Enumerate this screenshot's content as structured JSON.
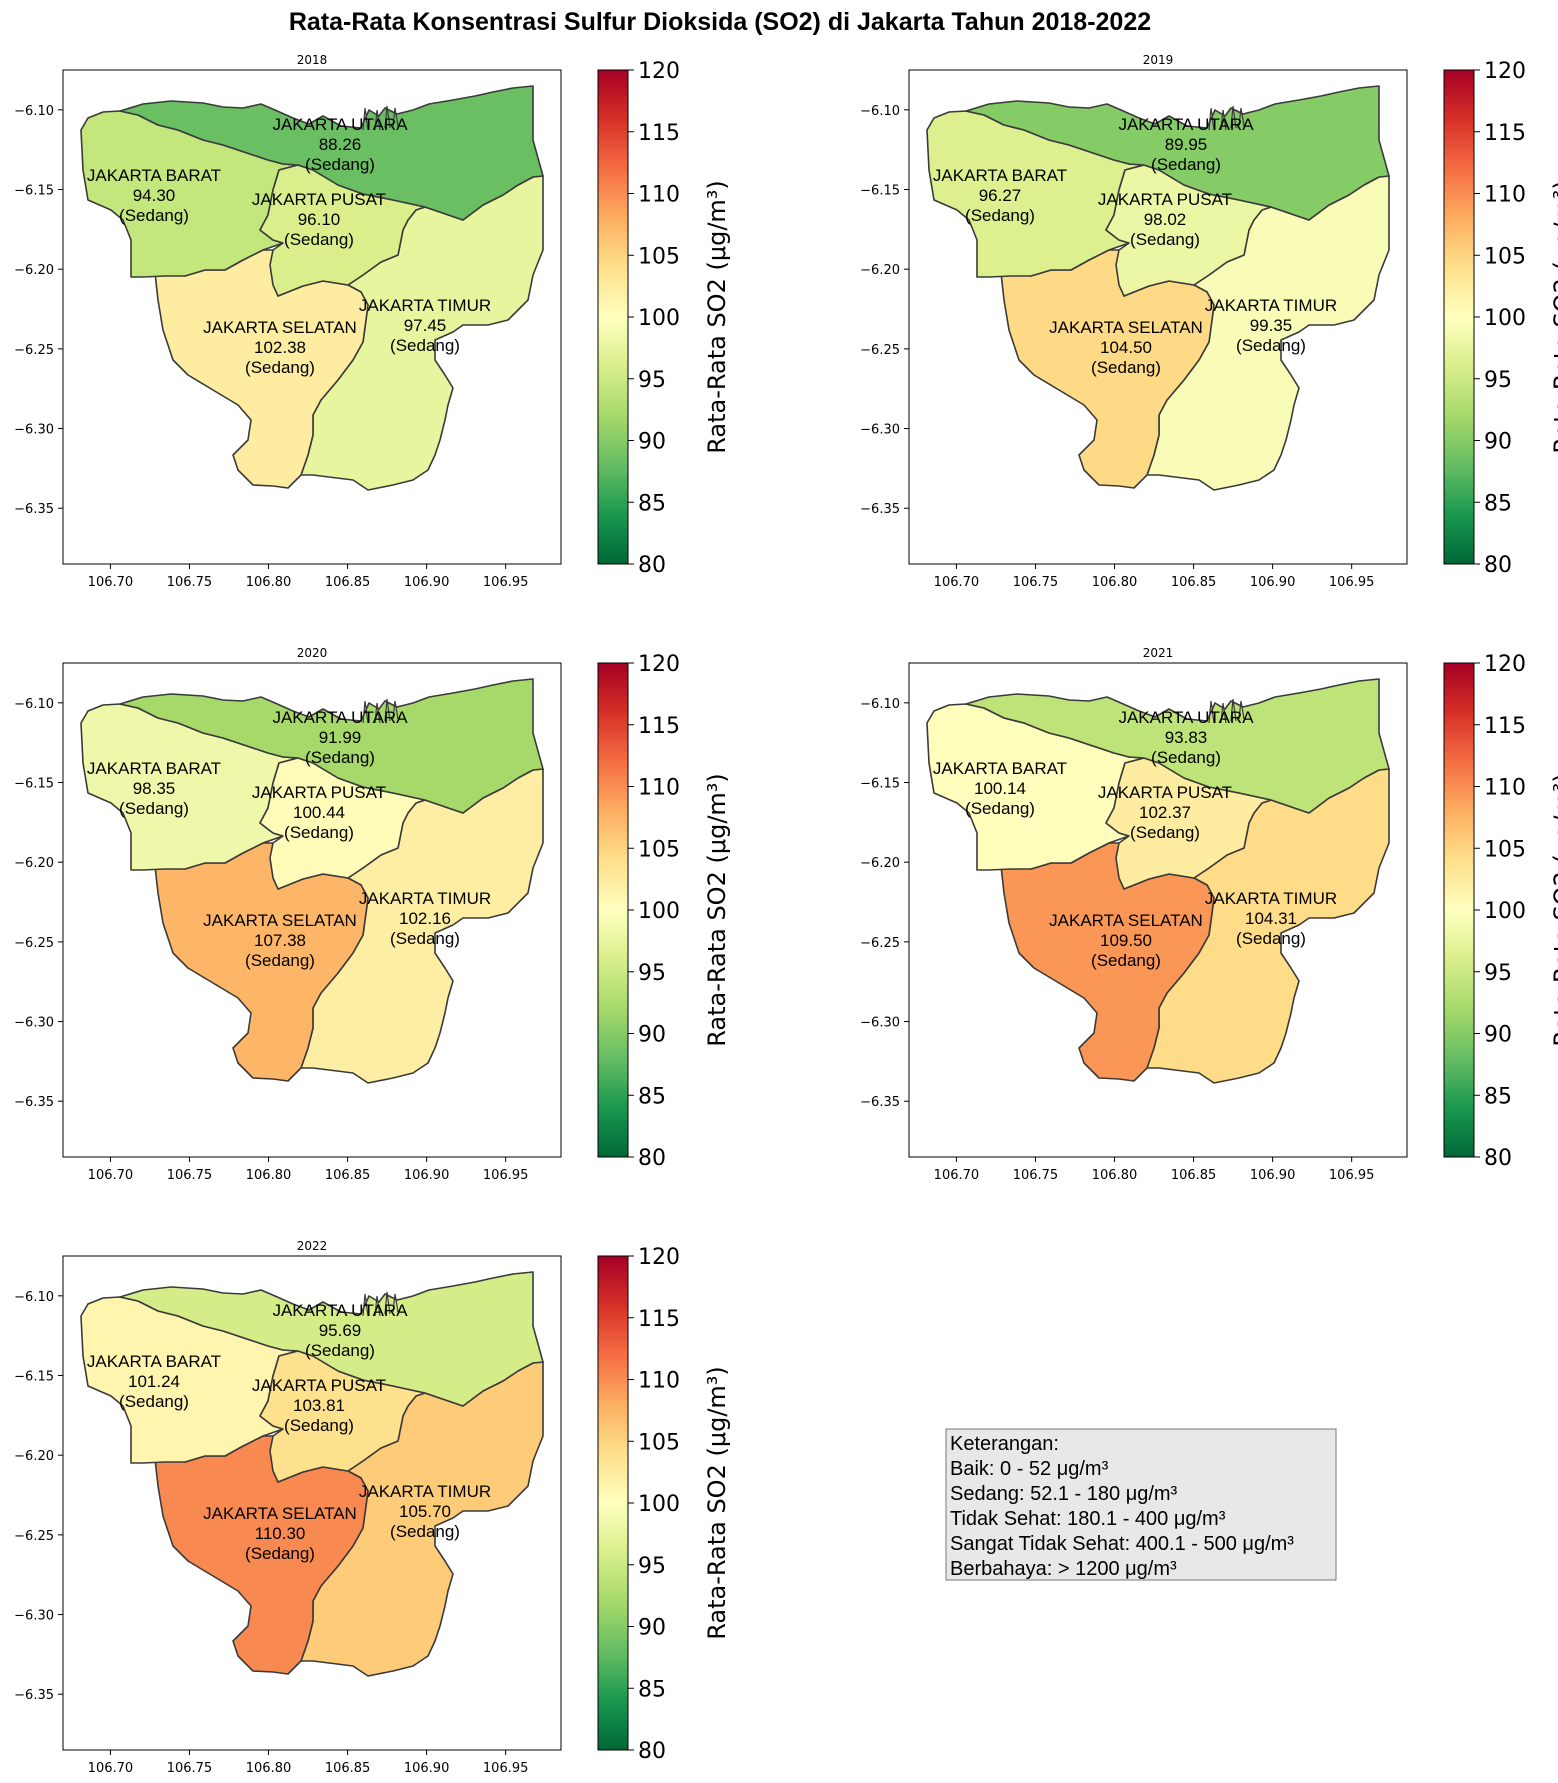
{
  "title": "Rata-Rata Konsentrasi Sulfur Dioksida (SO2) di Jakarta Tahun 2018-2022",
  "colorbar": {
    "label": "Rata-Rata SO2 (μg/m³)",
    "min": 80,
    "max": 120,
    "ticks": [
      "80",
      "85",
      "90",
      "95",
      "100",
      "105",
      "110",
      "115",
      "120"
    ],
    "colormap": "RdYlGn_r"
  },
  "x_ticks": [
    "106.70",
    "106.75",
    "106.80",
    "106.85",
    "106.90",
    "106.95"
  ],
  "y_ticks": [
    "−6.10",
    "−6.15",
    "−6.20",
    "−6.25",
    "−6.30",
    "−6.35"
  ],
  "chart_data": {
    "type": "choropleth",
    "regions": [
      "JAKARTA UTARA",
      "JAKARTA BARAT",
      "JAKARTA PUSAT",
      "JAKARTA SELATAN",
      "JAKARTA TIMUR"
    ],
    "panels": [
      {
        "year": "2018",
        "values": {
          "JAKARTA UTARA": "88.26",
          "JAKARTA BARAT": "94.30",
          "JAKARTA PUSAT": "96.10",
          "JAKARTA SELATAN": "102.38",
          "JAKARTA TIMUR": "97.45"
        }
      },
      {
        "year": "2019",
        "values": {
          "JAKARTA UTARA": "89.95",
          "JAKARTA BARAT": "96.27",
          "JAKARTA PUSAT": "98.02",
          "JAKARTA SELATAN": "104.50",
          "JAKARTA TIMUR": "99.35"
        }
      },
      {
        "year": "2020",
        "values": {
          "JAKARTA UTARA": "91.99",
          "JAKARTA BARAT": "98.35",
          "JAKARTA PUSAT": "100.44",
          "JAKARTA SELATAN": "107.38",
          "JAKARTA TIMUR": "102.16"
        }
      },
      {
        "year": "2021",
        "values": {
          "JAKARTA UTARA": "93.83",
          "JAKARTA BARAT": "100.14",
          "JAKARTA PUSAT": "102.37",
          "JAKARTA SELATAN": "109.50",
          "JAKARTA TIMUR": "104.31"
        }
      },
      {
        "year": "2022",
        "values": {
          "JAKARTA UTARA": "95.69",
          "JAKARTA BARAT": "101.24",
          "JAKARTA PUSAT": "103.81",
          "JAKARTA SELATAN": "110.30",
          "JAKARTA TIMUR": "105.70"
        }
      }
    ],
    "category": "(Sedang)",
    "xlim": [
      106.67,
      106.985
    ],
    "ylim": [
      -6.385,
      -6.075
    ]
  },
  "legend": {
    "lines": [
      "Keterangan:",
      "Baik: 0 - 52 μg/m³",
      "Sedang: 52.1 - 180 μg/m³",
      "Tidak Sehat: 180.1 - 400 μg/m³",
      "Sangat Tidak Sehat: 400.1 - 500 μg/m³",
      "Berbahaya: > 1200 μg/m³"
    ]
  }
}
